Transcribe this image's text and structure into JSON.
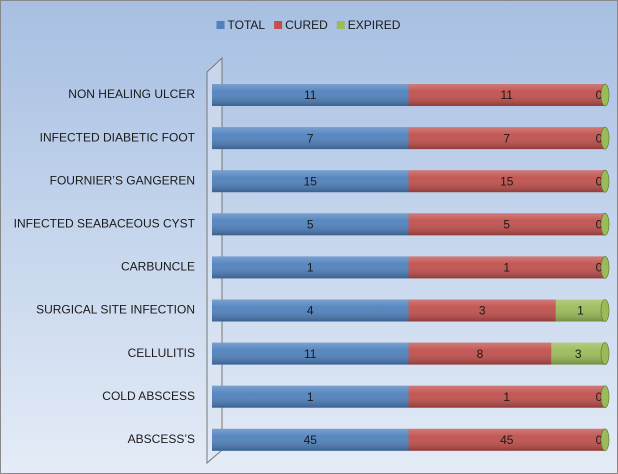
{
  "chart_data": {
    "type": "bar",
    "orientation": "horizontal",
    "stacking": "percent",
    "categories": [
      "NON HEALING ULCER",
      "INFECTED DIABETIC FOOT",
      "FOURNIER’S GANGEREN",
      "INFECTED SEABACEOUS CYST",
      "CARBUNCLE",
      "SURGICAL SITE INFECTION",
      "CELLULITIS",
      "COLD ABSCESS",
      "ABSCESS’S"
    ],
    "series": [
      {
        "name": "TOTAL",
        "color": "#4f81bd",
        "values": [
          11,
          7,
          15,
          5,
          1,
          4,
          11,
          1,
          45
        ]
      },
      {
        "name": "CURED",
        "color": "#c0504d",
        "values": [
          11,
          7,
          15,
          5,
          1,
          3,
          8,
          1,
          45
        ]
      },
      {
        "name": "EXPIRED",
        "color": "#9bbb59",
        "values": [
          0,
          0,
          0,
          0,
          0,
          1,
          3,
          0,
          0
        ]
      }
    ],
    "legend": "top"
  }
}
